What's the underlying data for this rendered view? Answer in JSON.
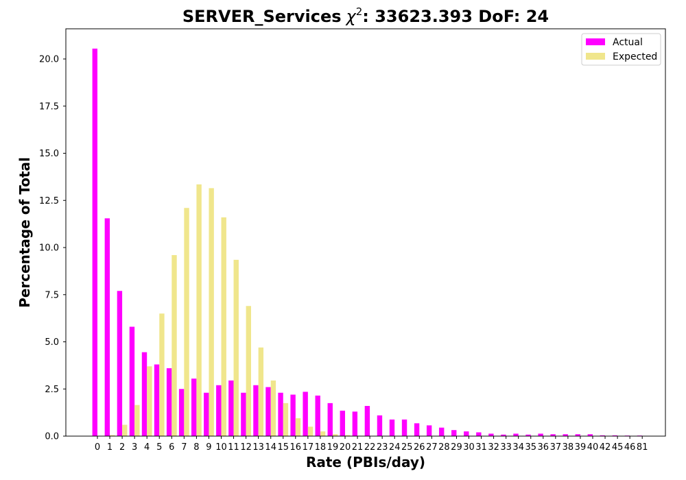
{
  "chart_data": {
    "type": "bar",
    "title": "SERVER_Services",
    "title_chi_symbol": "χ",
    "title_chi_exponent": "2",
    "title_stats": ": 33623.393 DoF: 24",
    "xlabel": "Rate (PBIs/day)",
    "ylabel": "Percentage of Total",
    "ylim": [
      0,
      21.6
    ],
    "yticks": [
      "0.0",
      "2.5",
      "5.0",
      "7.5",
      "10.0",
      "12.5",
      "15.0",
      "17.5",
      "20.0"
    ],
    "legend_position": "top-right",
    "grid": false,
    "categories": [
      "0",
      "1",
      "2",
      "3",
      "4",
      "5",
      "6",
      "7",
      "8",
      "9",
      "10",
      "11",
      "12",
      "13",
      "14",
      "15",
      "16",
      "17",
      "18",
      "19",
      "20",
      "21",
      "22",
      "23",
      "24",
      "25",
      "26",
      "27",
      "28",
      "29",
      "30",
      "31",
      "32",
      "33",
      "34",
      "35",
      "36",
      "37",
      "38",
      "39",
      "40",
      "42",
      "45",
      "46",
      "81"
    ],
    "series": [
      {
        "name": "Actual",
        "color": "#ff00ff",
        "values": [
          20.55,
          11.55,
          7.7,
          5.8,
          4.45,
          3.8,
          3.6,
          2.5,
          3.05,
          2.3,
          2.7,
          2.95,
          2.3,
          2.7,
          2.6,
          2.3,
          2.2,
          2.35,
          2.15,
          1.75,
          1.35,
          1.3,
          1.6,
          1.1,
          0.88,
          0.88,
          0.68,
          0.57,
          0.45,
          0.32,
          0.25,
          0.2,
          0.13,
          0.08,
          0.13,
          0.08,
          0.13,
          0.1,
          0.1,
          0.1,
          0.1,
          0.04,
          0.04,
          0.03,
          0.03
        ]
      },
      {
        "name": "Expected",
        "color": "#f0e68c",
        "values": [
          0.0,
          0.05,
          0.6,
          1.65,
          3.7,
          6.5,
          9.6,
          12.1,
          13.35,
          13.15,
          11.6,
          9.35,
          6.9,
          4.7,
          2.95,
          1.75,
          0.95,
          0.5,
          0.25,
          0.1,
          0.05,
          0.02,
          0.01,
          0,
          0,
          0,
          0,
          0,
          0,
          0,
          0,
          0,
          0,
          0,
          0,
          0,
          0,
          0,
          0,
          0,
          0,
          0,
          0,
          0,
          0
        ]
      }
    ]
  }
}
